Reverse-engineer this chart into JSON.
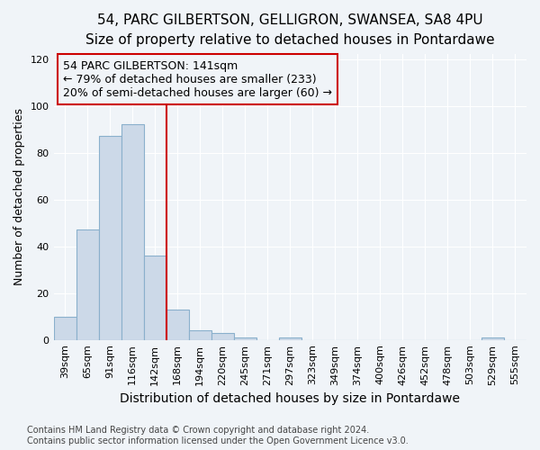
{
  "title_line1": "54, PARC GILBERTSON, GELLIGRON, SWANSEA, SA8 4PU",
  "title_line2": "Size of property relative to detached houses in Pontardawe",
  "xlabel": "Distribution of detached houses by size in Pontardawe",
  "ylabel": "Number of detached properties",
  "bar_labels": [
    "39sqm",
    "65sqm",
    "91sqm",
    "116sqm",
    "142sqm",
    "168sqm",
    "194sqm",
    "220sqm",
    "245sqm",
    "271sqm",
    "297sqm",
    "323sqm",
    "349sqm",
    "374sqm",
    "400sqm",
    "426sqm",
    "452sqm",
    "478sqm",
    "503sqm",
    "529sqm",
    "555sqm"
  ],
  "bar_values": [
    10,
    47,
    87,
    92,
    36,
    13,
    4,
    3,
    1,
    0,
    1,
    0,
    0,
    0,
    0,
    0,
    0,
    0,
    0,
    1,
    0
  ],
  "bar_color": "#ccd9e8",
  "bar_edgecolor": "#8ab0cc",
  "annotation_text_line1": "54 PARC GILBERTSON: 141sqm",
  "annotation_text_line2": "← 79% of detached houses are smaller (233)",
  "annotation_text_line3": "20% of semi-detached houses are larger (60) →",
  "annotation_box_color": "#cc0000",
  "vline_x": 4.5,
  "ylim": [
    0,
    122
  ],
  "yticks": [
    0,
    20,
    40,
    60,
    80,
    100,
    120
  ],
  "footer_line1": "Contains HM Land Registry data © Crown copyright and database right 2024.",
  "footer_line2": "Contains public sector information licensed under the Open Government Licence v3.0.",
  "bg_color": "#f0f4f8",
  "grid_color": "#ffffff",
  "title_fontsize": 11,
  "subtitle_fontsize": 10,
  "xlabel_fontsize": 10,
  "ylabel_fontsize": 9,
  "tick_fontsize": 8,
  "footer_fontsize": 7,
  "annot_fontsize": 9
}
